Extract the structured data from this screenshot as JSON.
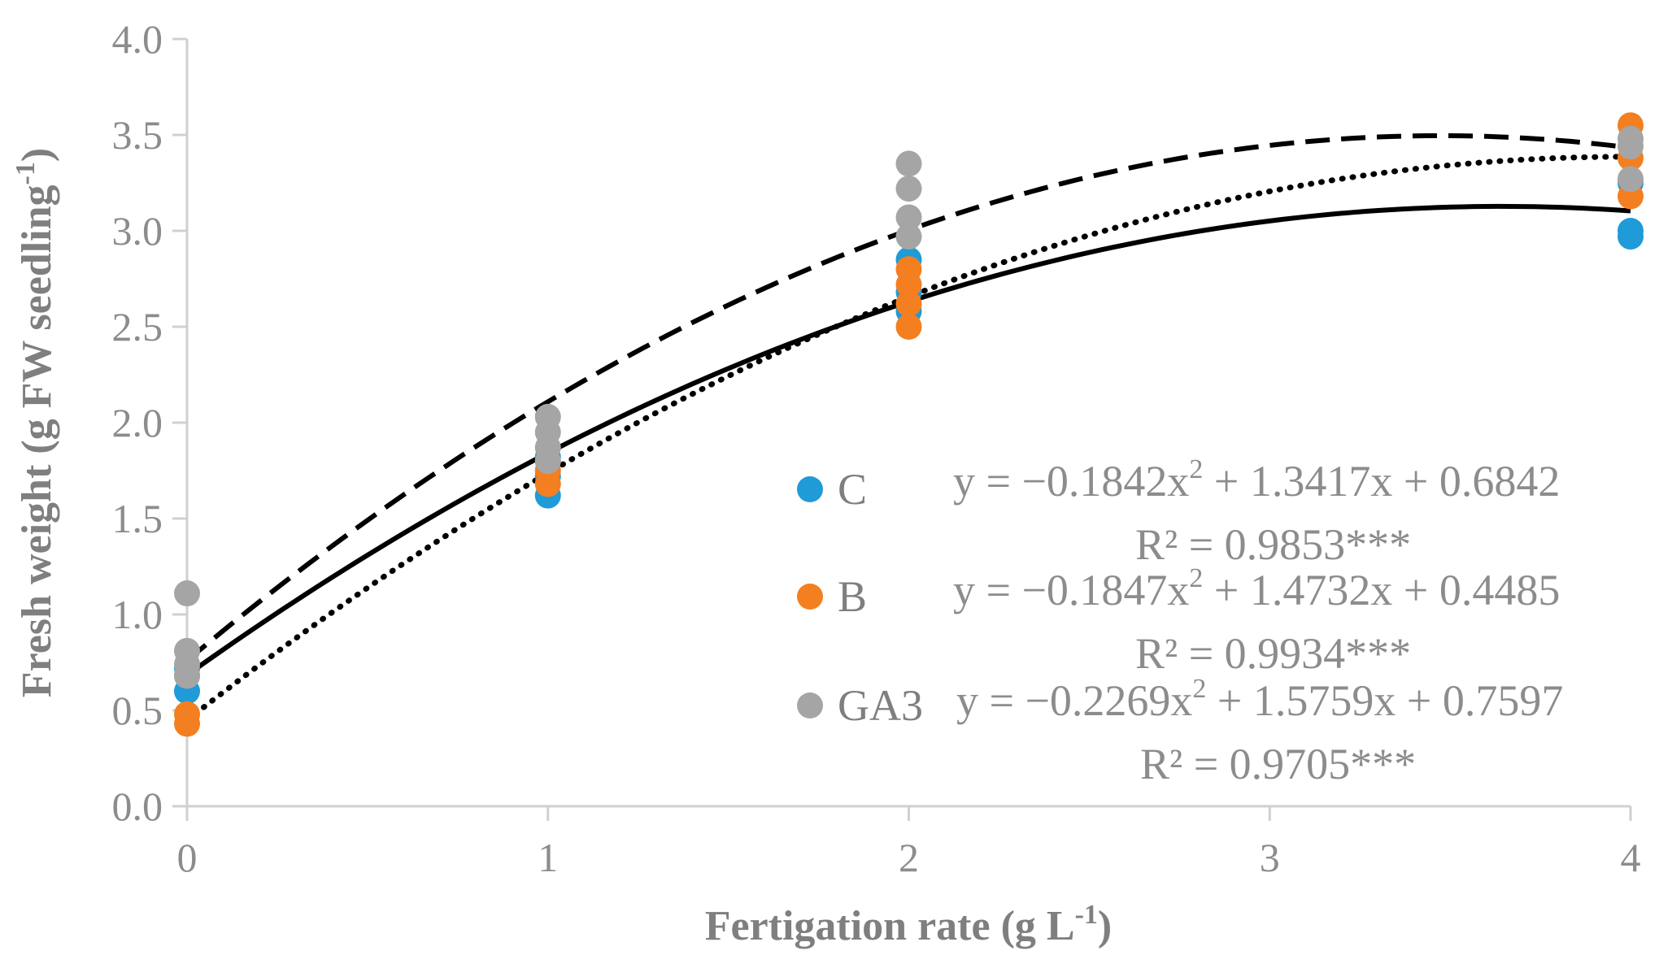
{
  "chart_data": {
    "type": "scatter",
    "title": "",
    "xlabel": "Fertigation rate (g L",
    "xlabel_sup": "-1",
    "xlabel_end": ")",
    "ylabel": "Fresh weight (g FW seedling",
    "ylabel_sup": "-1",
    "ylabel_end": ")",
    "xlim": [
      0,
      4
    ],
    "ylim": [
      0,
      4
    ],
    "x_ticks": [
      "0",
      "1",
      "2",
      "3",
      "4"
    ],
    "y_ticks": [
      "0.0",
      "0.5",
      "1.0",
      "1.5",
      "2.0",
      "2.5",
      "3.0",
      "3.5",
      "4.0"
    ],
    "series": [
      {
        "name": "C",
        "color": "#1f9bd7",
        "points": [
          [
            0,
            0.6
          ],
          [
            0,
            0.68
          ],
          [
            0,
            0.72
          ],
          [
            1,
            1.62
          ],
          [
            1,
            1.72
          ],
          [
            1,
            1.82
          ],
          [
            2,
            2.58
          ],
          [
            2,
            2.68
          ],
          [
            2,
            2.85
          ],
          [
            4,
            2.97
          ],
          [
            4,
            3.0
          ],
          [
            4,
            3.25
          ]
        ],
        "fit": {
          "a": -0.1842,
          "b": 1.3417,
          "c": 0.6842,
          "style": "solid"
        },
        "equation": "y = −0.1842x",
        "equation_rest": " + 1.3417x + 0.6842",
        "r2": "R² = 0.9853***"
      },
      {
        "name": "B",
        "color": "#f47f20",
        "points": [
          [
            0,
            0.43
          ],
          [
            0,
            0.48
          ],
          [
            1,
            1.68
          ],
          [
            1,
            1.75
          ],
          [
            1,
            1.8
          ],
          [
            2,
            2.5
          ],
          [
            2,
            2.62
          ],
          [
            2,
            2.72
          ],
          [
            2,
            2.8
          ],
          [
            4,
            3.18
          ],
          [
            4,
            3.38
          ],
          [
            4,
            3.55
          ]
        ],
        "fit": {
          "a": -0.1847,
          "b": 1.4732,
          "c": 0.4485,
          "style": "dotted"
        },
        "equation": "y = −0.1847x",
        "equation_rest": " + 1.4732x + 0.4485",
        "r2": "R² = 0.9934***"
      },
      {
        "name": "GA3",
        "color": "#a5a5a5",
        "points": [
          [
            0,
            0.68
          ],
          [
            0,
            0.74
          ],
          [
            0,
            0.81
          ],
          [
            0,
            1.11
          ],
          [
            1,
            1.8
          ],
          [
            1,
            1.87
          ],
          [
            1,
            1.95
          ],
          [
            1,
            2.03
          ],
          [
            2,
            2.97
          ],
          [
            2,
            3.07
          ],
          [
            2,
            3.22
          ],
          [
            2,
            3.35
          ],
          [
            4,
            3.27
          ],
          [
            4,
            3.44
          ],
          [
            4,
            3.48
          ]
        ],
        "fit": {
          "a": -0.2269,
          "b": 1.5759,
          "c": 0.7597,
          "style": "dashed"
        },
        "equation": "y = −0.2269x",
        "equation_rest": " + 1.5759x + 0.7597",
        "r2": "R² = 0.9705***"
      }
    ],
    "superscript_2": "2"
  }
}
